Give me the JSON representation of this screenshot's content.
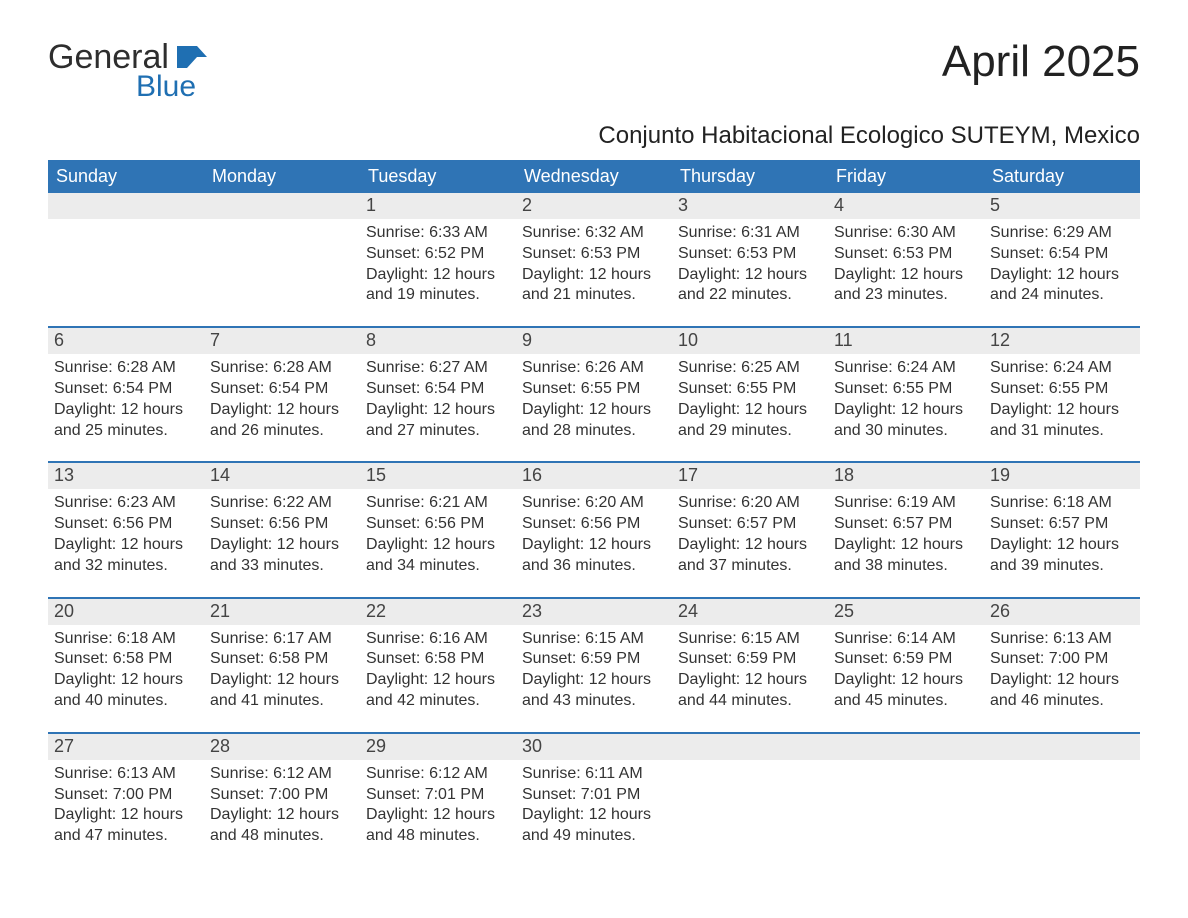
{
  "brand": {
    "name": "General",
    "sub": "Blue",
    "flag_color": "#1f6fb2",
    "text_color": "#2e2e2e"
  },
  "title": "April 2025",
  "subtitle": "Conjunto Habitacional Ecologico SUTEYM, Mexico",
  "colors": {
    "header_bg": "#2f74b5",
    "header_text": "#ffffff",
    "week_border": "#2f74b5",
    "daynum_bg": "#ececec",
    "body_text": "#333333",
    "page_bg": "#ffffff"
  },
  "fontsize": {
    "title": 44,
    "subtitle": 24,
    "dow": 18,
    "daynum": 18,
    "body": 16
  },
  "days_of_week": [
    "Sunday",
    "Monday",
    "Tuesday",
    "Wednesday",
    "Thursday",
    "Friday",
    "Saturday"
  ],
  "labels": {
    "sunrise": "Sunrise:",
    "sunset": "Sunset:",
    "daylight": "Daylight:"
  },
  "weeks": [
    [
      {},
      {},
      {
        "daynum": "1",
        "sunrise": "6:33 AM",
        "sunset": "6:52 PM",
        "daylight_l1": "12 hours",
        "daylight_l2": "and 19 minutes."
      },
      {
        "daynum": "2",
        "sunrise": "6:32 AM",
        "sunset": "6:53 PM",
        "daylight_l1": "12 hours",
        "daylight_l2": "and 21 minutes."
      },
      {
        "daynum": "3",
        "sunrise": "6:31 AM",
        "sunset": "6:53 PM",
        "daylight_l1": "12 hours",
        "daylight_l2": "and 22 minutes."
      },
      {
        "daynum": "4",
        "sunrise": "6:30 AM",
        "sunset": "6:53 PM",
        "daylight_l1": "12 hours",
        "daylight_l2": "and 23 minutes."
      },
      {
        "daynum": "5",
        "sunrise": "6:29 AM",
        "sunset": "6:54 PM",
        "daylight_l1": "12 hours",
        "daylight_l2": "and 24 minutes."
      }
    ],
    [
      {
        "daynum": "6",
        "sunrise": "6:28 AM",
        "sunset": "6:54 PM",
        "daylight_l1": "12 hours",
        "daylight_l2": "and 25 minutes."
      },
      {
        "daynum": "7",
        "sunrise": "6:28 AM",
        "sunset": "6:54 PM",
        "daylight_l1": "12 hours",
        "daylight_l2": "and 26 minutes."
      },
      {
        "daynum": "8",
        "sunrise": "6:27 AM",
        "sunset": "6:54 PM",
        "daylight_l1": "12 hours",
        "daylight_l2": "and 27 minutes."
      },
      {
        "daynum": "9",
        "sunrise": "6:26 AM",
        "sunset": "6:55 PM",
        "daylight_l1": "12 hours",
        "daylight_l2": "and 28 minutes."
      },
      {
        "daynum": "10",
        "sunrise": "6:25 AM",
        "sunset": "6:55 PM",
        "daylight_l1": "12 hours",
        "daylight_l2": "and 29 minutes."
      },
      {
        "daynum": "11",
        "sunrise": "6:24 AM",
        "sunset": "6:55 PM",
        "daylight_l1": "12 hours",
        "daylight_l2": "and 30 minutes."
      },
      {
        "daynum": "12",
        "sunrise": "6:24 AM",
        "sunset": "6:55 PM",
        "daylight_l1": "12 hours",
        "daylight_l2": "and 31 minutes."
      }
    ],
    [
      {
        "daynum": "13",
        "sunrise": "6:23 AM",
        "sunset": "6:56 PM",
        "daylight_l1": "12 hours",
        "daylight_l2": "and 32 minutes."
      },
      {
        "daynum": "14",
        "sunrise": "6:22 AM",
        "sunset": "6:56 PM",
        "daylight_l1": "12 hours",
        "daylight_l2": "and 33 minutes."
      },
      {
        "daynum": "15",
        "sunrise": "6:21 AM",
        "sunset": "6:56 PM",
        "daylight_l1": "12 hours",
        "daylight_l2": "and 34 minutes."
      },
      {
        "daynum": "16",
        "sunrise": "6:20 AM",
        "sunset": "6:56 PM",
        "daylight_l1": "12 hours",
        "daylight_l2": "and 36 minutes."
      },
      {
        "daynum": "17",
        "sunrise": "6:20 AM",
        "sunset": "6:57 PM",
        "daylight_l1": "12 hours",
        "daylight_l2": "and 37 minutes."
      },
      {
        "daynum": "18",
        "sunrise": "6:19 AM",
        "sunset": "6:57 PM",
        "daylight_l1": "12 hours",
        "daylight_l2": "and 38 minutes."
      },
      {
        "daynum": "19",
        "sunrise": "6:18 AM",
        "sunset": "6:57 PM",
        "daylight_l1": "12 hours",
        "daylight_l2": "and 39 minutes."
      }
    ],
    [
      {
        "daynum": "20",
        "sunrise": "6:18 AM",
        "sunset": "6:58 PM",
        "daylight_l1": "12 hours",
        "daylight_l2": "and 40 minutes."
      },
      {
        "daynum": "21",
        "sunrise": "6:17 AM",
        "sunset": "6:58 PM",
        "daylight_l1": "12 hours",
        "daylight_l2": "and 41 minutes."
      },
      {
        "daynum": "22",
        "sunrise": "6:16 AM",
        "sunset": "6:58 PM",
        "daylight_l1": "12 hours",
        "daylight_l2": "and 42 minutes."
      },
      {
        "daynum": "23",
        "sunrise": "6:15 AM",
        "sunset": "6:59 PM",
        "daylight_l1": "12 hours",
        "daylight_l2": "and 43 minutes."
      },
      {
        "daynum": "24",
        "sunrise": "6:15 AM",
        "sunset": "6:59 PM",
        "daylight_l1": "12 hours",
        "daylight_l2": "and 44 minutes."
      },
      {
        "daynum": "25",
        "sunrise": "6:14 AM",
        "sunset": "6:59 PM",
        "daylight_l1": "12 hours",
        "daylight_l2": "and 45 minutes."
      },
      {
        "daynum": "26",
        "sunrise": "6:13 AM",
        "sunset": "7:00 PM",
        "daylight_l1": "12 hours",
        "daylight_l2": "and 46 minutes."
      }
    ],
    [
      {
        "daynum": "27",
        "sunrise": "6:13 AM",
        "sunset": "7:00 PM",
        "daylight_l1": "12 hours",
        "daylight_l2": "and 47 minutes."
      },
      {
        "daynum": "28",
        "sunrise": "6:12 AM",
        "sunset": "7:00 PM",
        "daylight_l1": "12 hours",
        "daylight_l2": "and 48 minutes."
      },
      {
        "daynum": "29",
        "sunrise": "6:12 AM",
        "sunset": "7:01 PM",
        "daylight_l1": "12 hours",
        "daylight_l2": "and 48 minutes."
      },
      {
        "daynum": "30",
        "sunrise": "6:11 AM",
        "sunset": "7:01 PM",
        "daylight_l1": "12 hours",
        "daylight_l2": "and 49 minutes."
      },
      {},
      {},
      {}
    ]
  ]
}
